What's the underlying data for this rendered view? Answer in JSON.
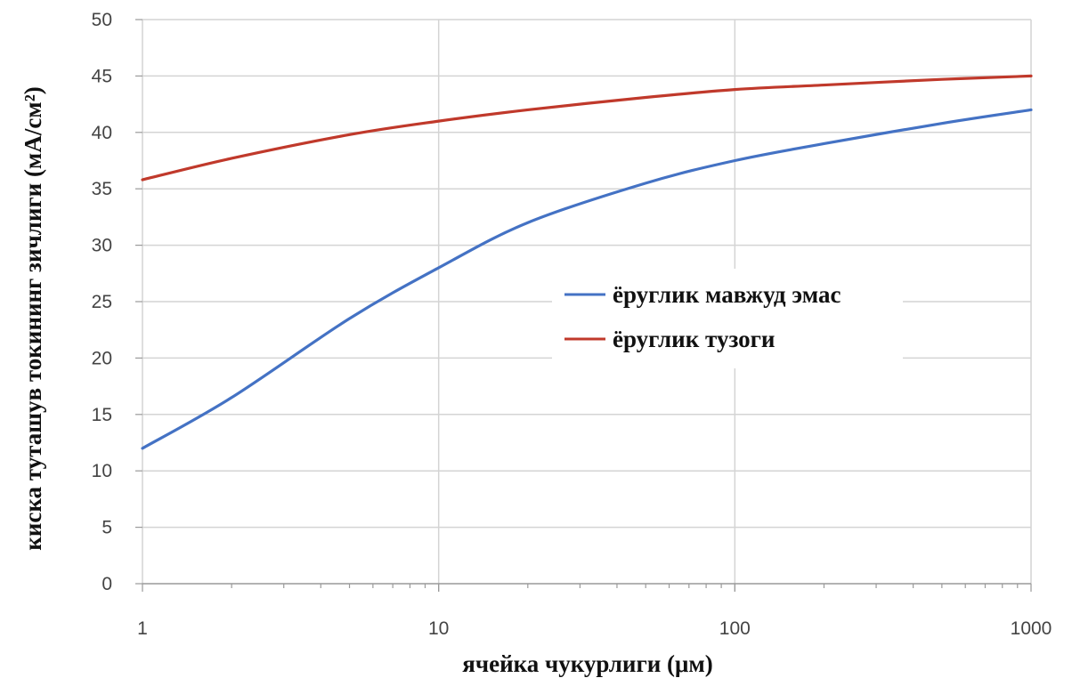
{
  "chart_data": {
    "type": "line",
    "xlabel": "ячейка чукурлиги (μм)",
    "ylabel": "киска туташув токининг зичлиги (мА/см²)",
    "xscale": "log",
    "xlim": [
      1,
      1000
    ],
    "ylim": [
      0,
      50
    ],
    "xticks": [
      "1",
      "10",
      "100",
      "1000"
    ],
    "yticks": [
      "0",
      "5",
      "10",
      "15",
      "20",
      "25",
      "30",
      "35",
      "40",
      "45",
      "50"
    ],
    "grid": true,
    "legend_position": "center-right",
    "series": [
      {
        "name": "ёруглик мавжуд эмас",
        "color": "#4472c4",
        "x": [
          1,
          2,
          5,
          10,
          20,
          50,
          100,
          200,
          500,
          1000
        ],
        "y": [
          12,
          16.5,
          23.5,
          28,
          32,
          35.5,
          37.5,
          39,
          40.8,
          42
        ]
      },
      {
        "name": "ёруглик тузоги",
        "color": "#c0392b",
        "x": [
          1,
          2,
          5,
          10,
          20,
          50,
          100,
          200,
          500,
          1000
        ],
        "y": [
          35.8,
          37.7,
          39.8,
          41,
          42,
          43.1,
          43.8,
          44.2,
          44.7,
          45
        ]
      }
    ]
  }
}
